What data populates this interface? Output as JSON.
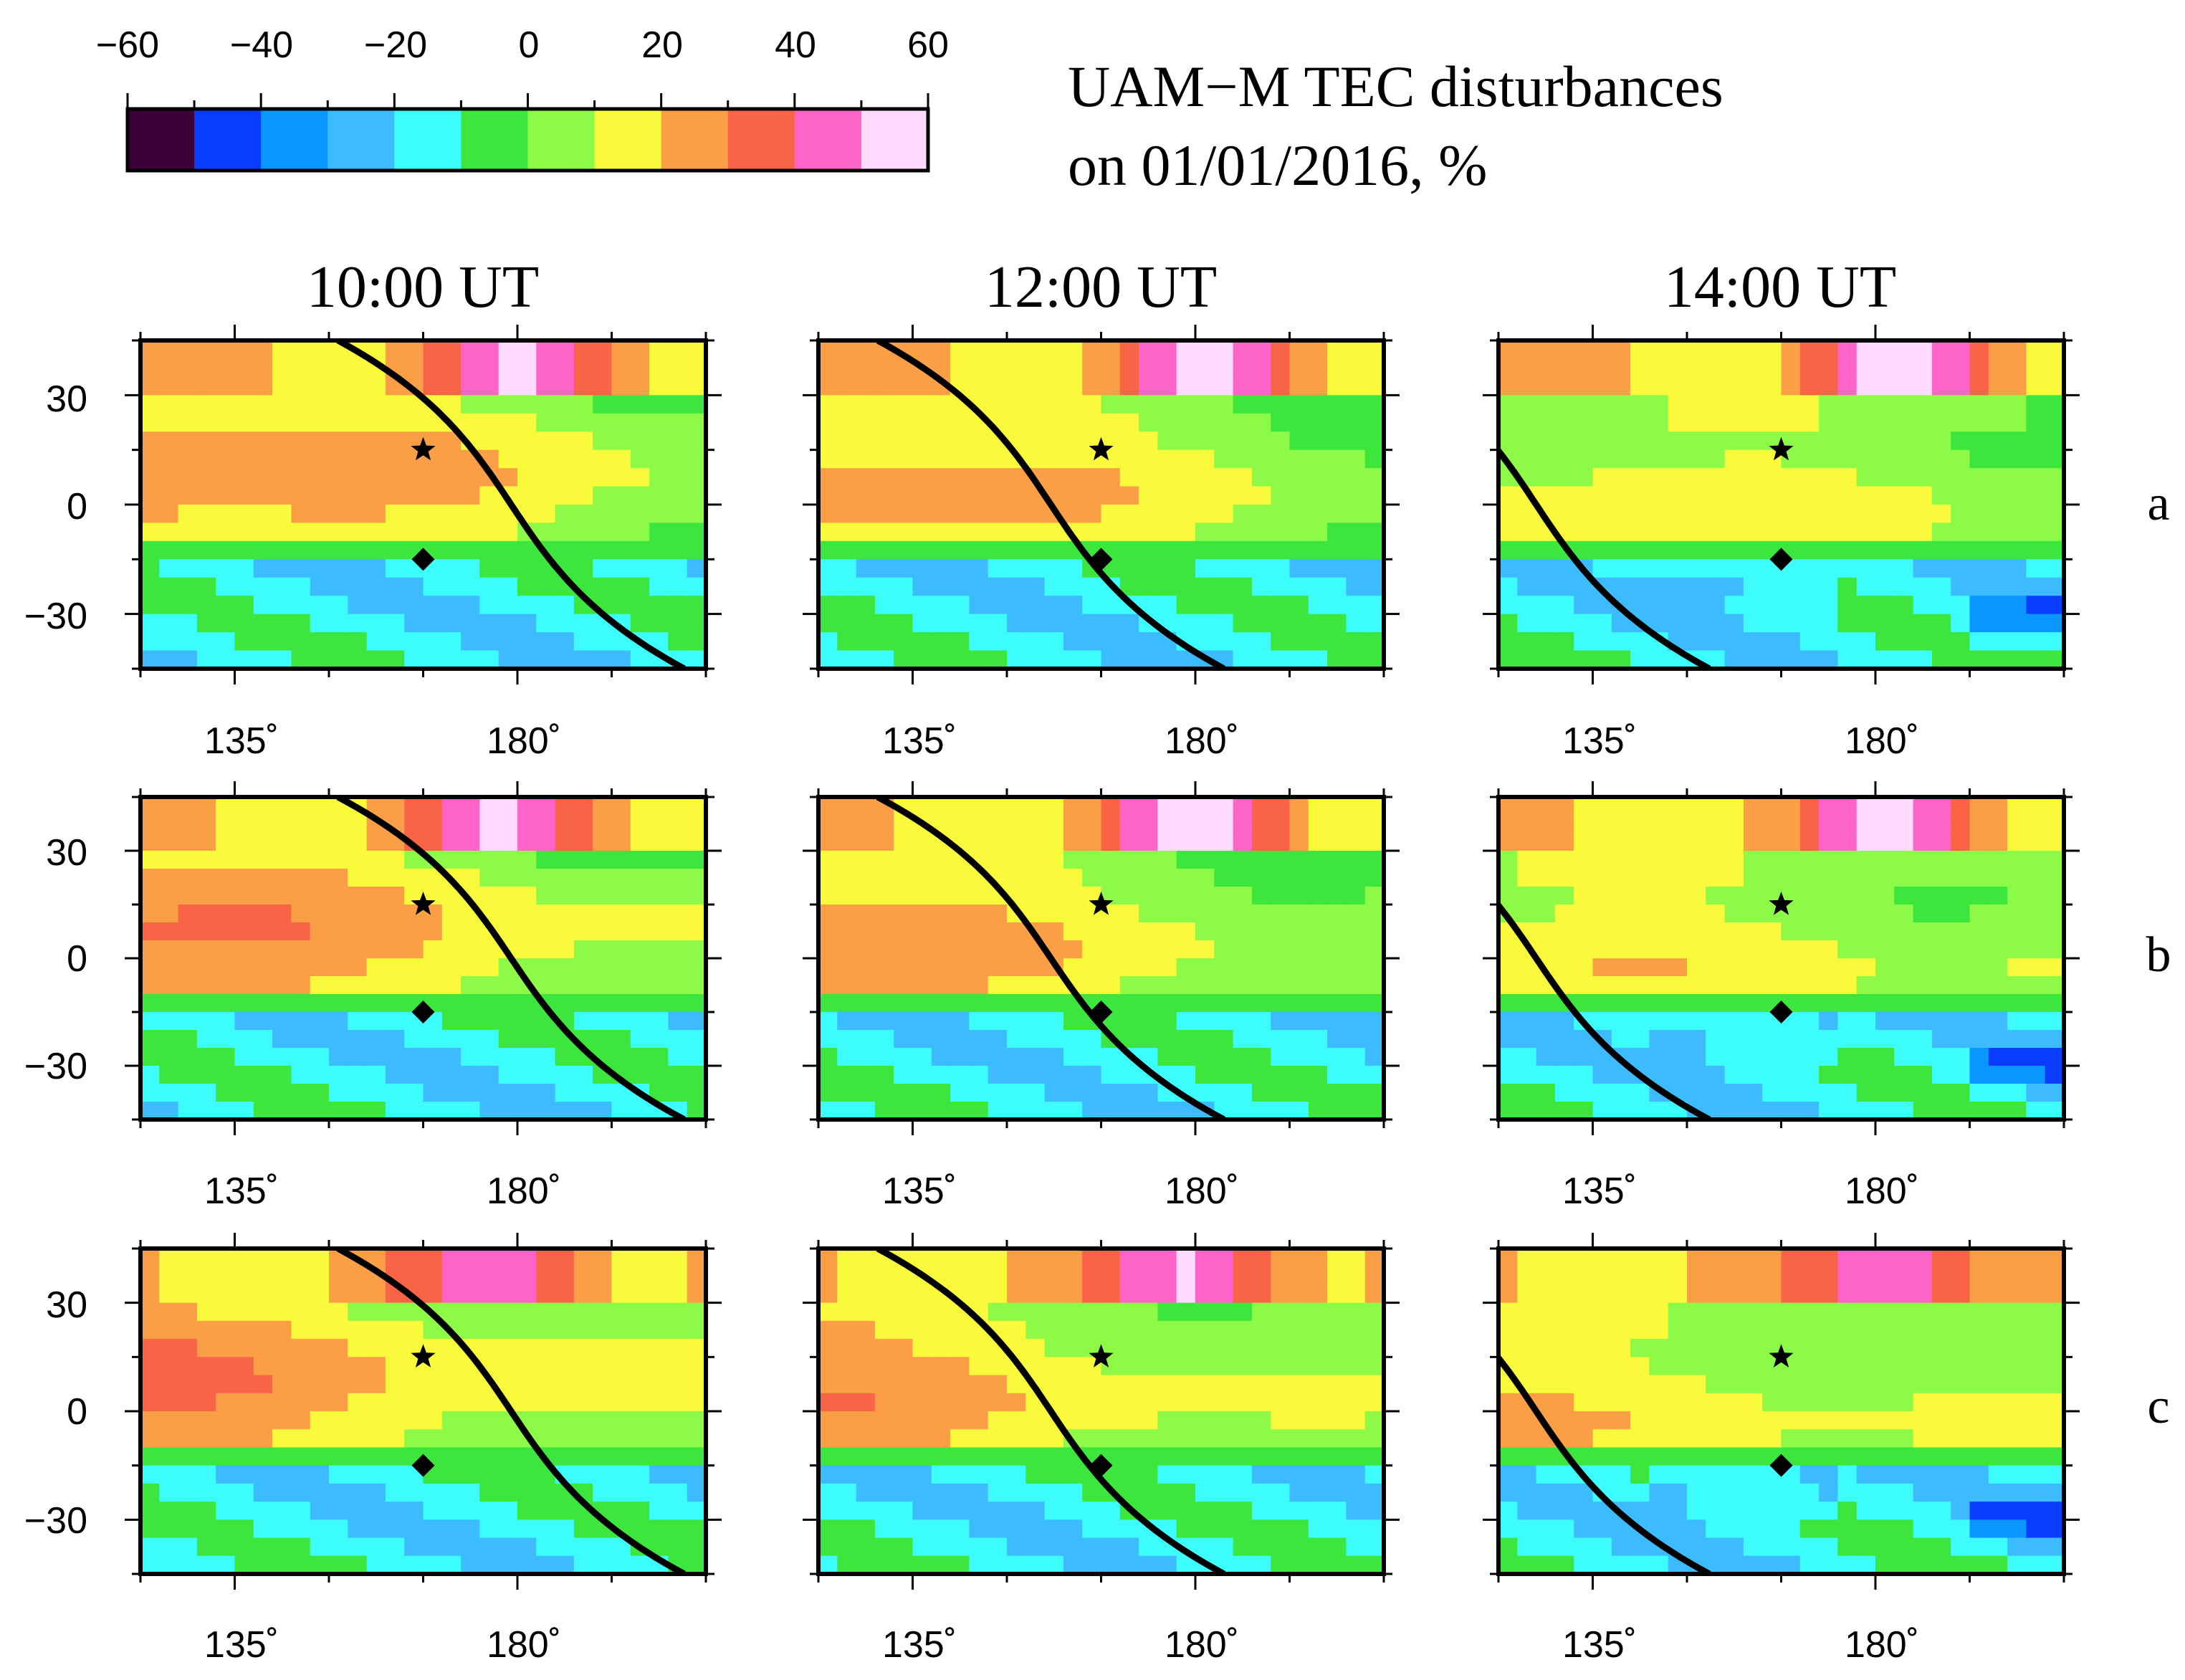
{
  "chart_data": {
    "type": "heatmap",
    "title_line1": "UAM−M TEC disturbances",
    "title_line2": "on 01/01/2016, %",
    "colorbar": {
      "ticks": [
        "−60",
        "−40",
        "−20",
        "0",
        "20",
        "40",
        "60"
      ],
      "bins": [
        -60,
        -50,
        -40,
        -30,
        -20,
        -10,
        0,
        10,
        20,
        30,
        40,
        50,
        60
      ],
      "colors": [
        "#3b0038",
        "#0a3cff",
        "#0a96ff",
        "#3cbcff",
        "#3cfcfc",
        "#3ce63c",
        "#8cfa46",
        "#fafa3c",
        "#fa9f46",
        "#fa6446",
        "#ff64c8",
        "#ffdcff"
      ]
    },
    "columns": [
      "10:00 UT",
      "12:00 UT",
      "14:00 UT"
    ],
    "rows": [
      "a",
      "b",
      "c"
    ],
    "x_ticks": [
      "135˚",
      "180˚"
    ],
    "x_tick_values": [
      135,
      180
    ],
    "y_ticks": [
      "30",
      "0",
      "−30"
    ],
    "y_tick_values": [
      30,
      0,
      -30
    ],
    "xlim": [
      120,
      210
    ],
    "ylim": [
      -45,
      45
    ],
    "markers": {
      "star": {
        "lon": 165,
        "lat": 15
      },
      "diamond": {
        "lon": 165,
        "lat": -15
      }
    },
    "terminator_lon_at_equator": {
      "10:00 UT": 179,
      "12:00 UT": 157,
      "14:00 UT": 126
    }
  }
}
